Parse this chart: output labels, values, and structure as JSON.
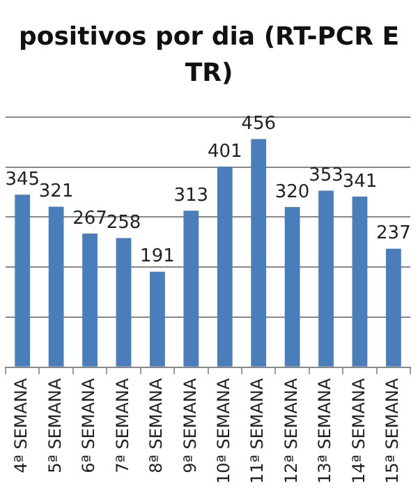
{
  "chart_data": {
    "type": "bar",
    "title": "positivos por dia (RT-PCR E TR)",
    "categories": [
      "4ª SEMANA",
      "5ª SEMANA",
      "6ª SEMANA",
      "7ª SEMANA",
      "8ª SEMANA",
      "9ª SEMANA",
      "10ª SEMANA",
      "11ª SEMANA",
      "12ª SEMANA",
      "13ª SEMANA",
      "14ª SEMANA",
      "15ª SEMANA"
    ],
    "values": [
      345,
      321,
      267,
      258,
      191,
      313,
      401,
      456,
      320,
      353,
      341,
      237
    ],
    "color": "#4a7ebb",
    "ylim": [
      0,
      500
    ],
    "yticks": [
      0,
      100,
      200,
      300,
      400,
      500
    ],
    "tick_labels": "x",
    "grid": "y",
    "data_labels": true
  }
}
